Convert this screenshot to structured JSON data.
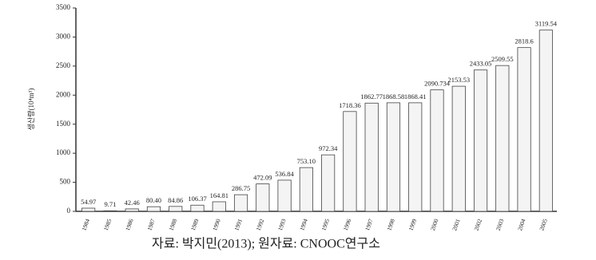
{
  "chart_data": {
    "type": "bar",
    "y_label": "생산량(10⁴m³)",
    "categories": [
      "1984",
      "1985",
      "1986",
      "1987",
      "1988",
      "1989",
      "1990",
      "1991",
      "1992",
      "1993",
      "1994",
      "1995",
      "1996",
      "1997",
      "1998",
      "1999",
      "2000",
      "2001",
      "2002",
      "2003",
      "2004",
      "2005"
    ],
    "values": [
      54.97,
      9.71,
      42.46,
      80.4,
      84.86,
      106.37,
      164.81,
      286.75,
      472.09,
      536.84,
      753.1,
      972.34,
      1718.36,
      1862.77,
      1868.58,
      1868.41,
      2090.734,
      2153.53,
      2433.05,
      2509.55,
      2818.6,
      3119.54
    ],
    "value_labels": [
      "54.97",
      "9.71",
      "42.46",
      "80.40",
      "84.86",
      "106.37",
      "164.81",
      "286.75",
      "472.09",
      "536.84",
      "753.10",
      "972.34",
      "1718.36",
      "1862.77",
      "1868.58",
      "1868.41",
      "2090.734",
      "2153.53",
      "2433.05",
      "2509.55",
      "2818.6",
      "3119.54"
    ],
    "color": "#f4f4f4",
    "ylim": [
      0,
      3500
    ],
    "yticks": [
      0,
      500,
      1000,
      1500,
      2000,
      2500,
      3000,
      3500
    ],
    "source": "자료: 박지민(2013); 원자료: CNOOC연구소"
  }
}
